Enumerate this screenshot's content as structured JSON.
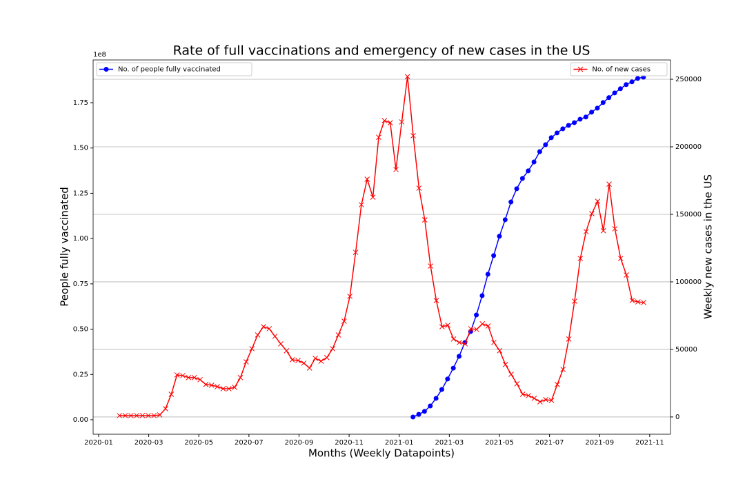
{
  "chart_data": {
    "type": "line",
    "title": "Rate of full vaccinations and emergency of new cases in the US",
    "x_label": "Months (Weekly Datapoints)",
    "y_label": "People fully vaccinated",
    "y2_label": "Weekly new cases in the US",
    "y_offset_label": "1e8",
    "xlim": [
      -0.22,
      22.83
    ],
    "xticks": [
      {
        "value": 0,
        "label": "2020-01"
      },
      {
        "value": 2,
        "label": "2020-03"
      },
      {
        "value": 4,
        "label": "2020-05"
      },
      {
        "value": 6,
        "label": "2020-07"
      },
      {
        "value": 8,
        "label": "2020-09"
      },
      {
        "value": 10,
        "label": "2020-11"
      },
      {
        "value": 12,
        "label": "2021-01"
      },
      {
        "value": 14,
        "label": "2021-03"
      },
      {
        "value": 16,
        "label": "2021-05"
      },
      {
        "value": 18,
        "label": "2021-07"
      },
      {
        "value": 20,
        "label": "2021-09"
      },
      {
        "value": 22,
        "label": "2021-11"
      }
    ],
    "ylim": [
      -8000000,
      198600000
    ],
    "yticks": [
      {
        "value": 0,
        "label": "0.00"
      },
      {
        "value": 25000000,
        "label": "0.25"
      },
      {
        "value": 50000000,
        "label": "0.50"
      },
      {
        "value": 75000000,
        "label": "0.75"
      },
      {
        "value": 100000000,
        "label": "1.00"
      },
      {
        "value": 125000000,
        "label": "1.25"
      },
      {
        "value": 150000000,
        "label": "1.50"
      },
      {
        "value": 175000000,
        "label": "1.75"
      }
    ],
    "y2lim": [
      -12800,
      264300
    ],
    "y2ticks": [
      0,
      50000,
      100000,
      150000,
      200000,
      250000
    ],
    "grid": "y2",
    "series": [
      {
        "name": "No. of people fully vaccinated",
        "color": "#0000ff",
        "marker": "o",
        "legend": "upper left",
        "x": [
          12.55,
          12.78,
          13.01,
          13.24,
          13.47,
          13.7,
          13.93,
          14.16,
          14.39,
          14.62,
          14.85,
          15.08,
          15.31,
          15.54,
          15.77,
          16.0,
          16.23,
          16.46,
          16.69,
          16.92,
          17.15,
          17.38,
          17.61,
          17.84,
          18.07,
          18.3,
          18.53,
          18.76,
          18.99,
          19.22,
          19.45,
          19.68,
          19.91,
          20.14,
          20.37,
          20.6,
          20.83,
          21.06,
          21.29,
          21.52,
          21.75
        ],
        "values": [
          1500000,
          3000000,
          4600000,
          7600000,
          11800000,
          16700000,
          22500000,
          28500000,
          35000000,
          42600000,
          48700000,
          57800000,
          68500000,
          80300000,
          90600000,
          101300000,
          110400000,
          120200000,
          127500000,
          133200000,
          137400000,
          142300000,
          148000000,
          151800000,
          155700000,
          158300000,
          160600000,
          162500000,
          164000000,
          165900000,
          167100000,
          169800000,
          172000000,
          175100000,
          177800000,
          180400000,
          182700000,
          185000000,
          186500000,
          188400000,
          189100000
        ]
      },
      {
        "name": "No. of new cases",
        "color": "#ff0000",
        "marker": "x",
        "legend": "upper right",
        "axis": "y2",
        "x": [
          0.83,
          1.06,
          1.29,
          1.52,
          1.75,
          1.98,
          2.21,
          2.44,
          2.67,
          2.9,
          3.13,
          3.36,
          3.59,
          3.82,
          4.05,
          4.28,
          4.51,
          4.74,
          4.97,
          5.2,
          5.43,
          5.66,
          5.89,
          6.12,
          6.35,
          6.58,
          6.81,
          7.04,
          7.27,
          7.5,
          7.73,
          7.96,
          8.19,
          8.42,
          8.65,
          8.88,
          9.11,
          9.34,
          9.57,
          9.8,
          10.03,
          10.26,
          10.49,
          10.72,
          10.95,
          11.18,
          11.41,
          11.64,
          11.87,
          12.1,
          12.33,
          12.56,
          12.79,
          13.02,
          13.25,
          13.48,
          13.71,
          13.94,
          14.17,
          14.4,
          14.63,
          14.86,
          15.09,
          15.32,
          15.55,
          15.78,
          16.01,
          16.24,
          16.47,
          16.7,
          16.93,
          17.16,
          17.39,
          17.62,
          17.85,
          18.08,
          18.31,
          18.54,
          18.77,
          19.0,
          19.23,
          19.46,
          19.69,
          19.92,
          20.15,
          20.38,
          20.61,
          20.84,
          21.07,
          21.3,
          21.53,
          21.76
        ],
        "values": [
          1000,
          1000,
          1000,
          1000,
          1000,
          1000,
          1000,
          1500,
          6100,
          16800,
          31100,
          30600,
          29100,
          29100,
          27600,
          24000,
          23500,
          22400,
          20900,
          20900,
          21900,
          29100,
          40800,
          50500,
          60700,
          66800,
          65300,
          59700,
          54100,
          49000,
          42300,
          41800,
          39800,
          36200,
          43400,
          41300,
          43900,
          50500,
          60700,
          70900,
          89300,
          121900,
          157100,
          176000,
          162700,
          207100,
          219400,
          217800,
          183200,
          218400,
          252000,
          208200,
          169400,
          145900,
          111700,
          86200,
          66800,
          67900,
          57700,
          55100,
          54100,
          65300,
          64800,
          68900,
          67300,
          55100,
          49000,
          38800,
          31600,
          24500,
          16800,
          15800,
          13800,
          11200,
          12800,
          12200,
          24000,
          35200,
          57700,
          85700,
          117300,
          137200,
          150500,
          159700,
          137800,
          172400,
          139300,
          117300,
          105100,
          86200,
          85200,
          84700
        ]
      }
    ]
  }
}
